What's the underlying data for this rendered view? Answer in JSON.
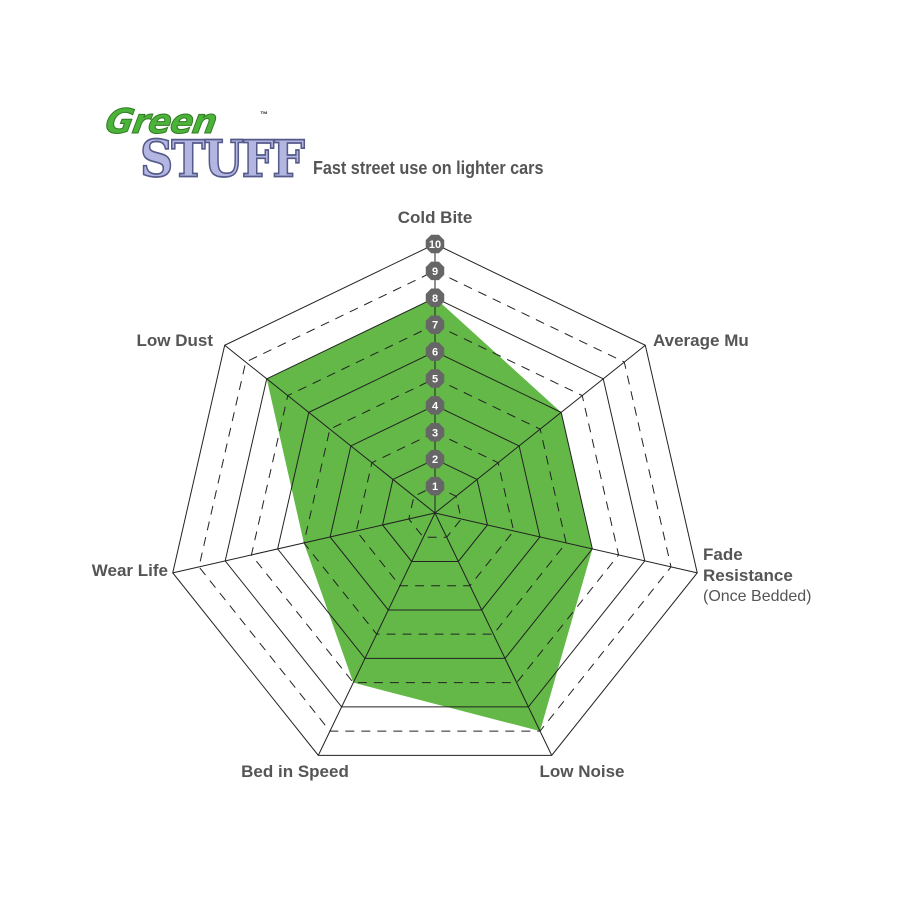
{
  "logo": {
    "line1": "Green",
    "line2": "STUFF",
    "tm": "™"
  },
  "chart_data": {
    "type": "radar",
    "title": "Fast street use on lighter cars",
    "axes": [
      "Cold Bite",
      "Average Mu",
      "Fade Resistance",
      "Low Noise",
      "Bed in Speed",
      "Wear Life",
      "Low Dust"
    ],
    "axis_sublabels": {
      "Fade Resistance": "(Once Bedded)"
    },
    "values": [
      8,
      6,
      6,
      9,
      7,
      5,
      8
    ],
    "range": [
      0,
      10
    ],
    "scale_labels": [
      "1",
      "2",
      "3",
      "4",
      "5",
      "6",
      "7",
      "8",
      "9",
      "10"
    ],
    "fill_color": "#63b847",
    "badge_color": "#666666"
  }
}
